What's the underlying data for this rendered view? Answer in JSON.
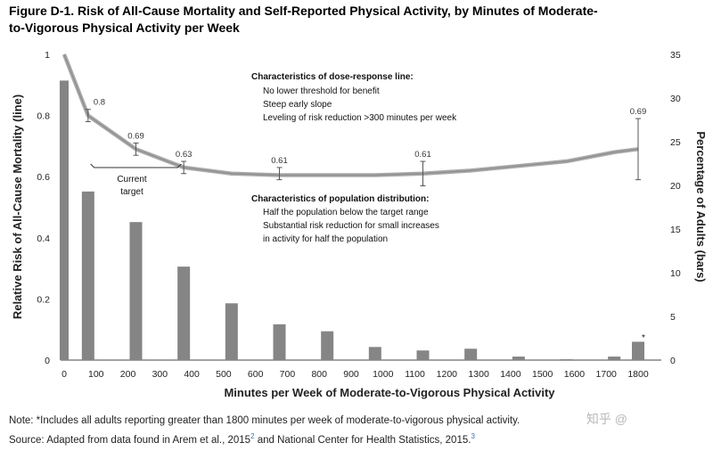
{
  "chart_data": {
    "type": "bar+line",
    "title_line1": "Figure D-1. Risk of All-Cause Mortality and Self-Reported Physical Activity, by Minutes of Moderate-",
    "title_line2": "to-Vigorous Physical Activity per Week",
    "xlabel": "Minutes per Week of Moderate-to-Vigorous Physical Activity",
    "ylabel_left": "Relative Risk of All-Cause Mortality (line)",
    "ylabel_right": "Percentage of Adults (bars)",
    "categories": [
      "0",
      "100",
      "200",
      "300",
      "400",
      "500",
      "600",
      "700",
      "800",
      "900",
      "1000",
      "1100",
      "1200",
      "1300",
      "1400",
      "1500",
      "1600",
      "1700",
      "1800"
    ],
    "left_ticks": [
      "0",
      "0.2",
      "0.4",
      "0.6",
      "0.8",
      "1"
    ],
    "left_ylim": [
      0,
      1
    ],
    "right_ticks": [
      "0",
      "5",
      "10",
      "15",
      "20",
      "25",
      "30",
      "35"
    ],
    "right_ylim": [
      0,
      35
    ],
    "bars": {
      "name": "Percentage of Adults",
      "x": [
        0,
        75,
        225,
        375,
        525,
        675,
        825,
        975,
        1125,
        1275,
        1425,
        1575,
        1725,
        1800
      ],
      "values": [
        32,
        19.3,
        15.8,
        10.7,
        6.5,
        4.1,
        3.3,
        1.5,
        1.1,
        1.3,
        0.4,
        0.1,
        0.4,
        2.1
      ]
    },
    "line": {
      "name": "Relative Risk of All-Cause Mortality",
      "x": [
        0,
        75,
        225,
        375,
        525,
        675,
        825,
        975,
        1125,
        1275,
        1425,
        1575,
        1725,
        1800
      ],
      "values": [
        1.0,
        0.8,
        0.69,
        0.63,
        0.61,
        0.605,
        0.605,
        0.605,
        0.61,
        0.62,
        0.635,
        0.65,
        0.68,
        0.69
      ]
    },
    "error_bars": [
      {
        "x": 75,
        "value": 0.8,
        "low": 0.78,
        "high": 0.82,
        "label": "0.8"
      },
      {
        "x": 225,
        "value": 0.69,
        "low": 0.67,
        "high": 0.71,
        "label": "0.69"
      },
      {
        "x": 375,
        "value": 0.63,
        "low": 0.61,
        "high": 0.65,
        "label": "0.63"
      },
      {
        "x": 675,
        "value": 0.61,
        "low": 0.59,
        "high": 0.63,
        "label": "0.61"
      },
      {
        "x": 1125,
        "value": 0.61,
        "low": 0.57,
        "high": 0.65,
        "label": "0.61"
      },
      {
        "x": 1800,
        "value": 0.69,
        "low": 0.59,
        "high": 0.79,
        "label": "0.69"
      }
    ],
    "annotations": {
      "dose_response_header": "Characteristics of dose-response line:",
      "dose_response_items": [
        "No lower threshold for benefit",
        "Steep early slope",
        "Leveling of risk reduction >300 minutes per week"
      ],
      "population_header": "Characteristics of population distribution:",
      "population_items": [
        "Half the population below the target range",
        "Substantial risk reduction for small increases",
        "in activity for half the population"
      ],
      "current_target_line1": "Current",
      "current_target_line2": "target",
      "current_target_range": [
        150,
        300
      ],
      "asterisk": "*"
    }
  },
  "footer": {
    "note": "Note: *Includes all adults reporting greater than 1800 minutes per week of moderate-to-vigorous physical activity.",
    "source_prefix": "Source: Adapted from data found in Arem et al., 2015",
    "source_ref1": "2",
    "source_middle": " and National Center for Health Statistics, 2015.",
    "source_ref2": "3"
  },
  "watermark": "知乎 @"
}
